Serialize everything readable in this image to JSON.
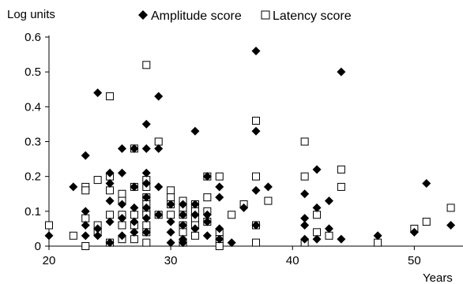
{
  "chart_data": {
    "type": "scatter",
    "title": "",
    "ylabel": "Log units",
    "xlabel": "Years",
    "xlim": [
      20,
      54
    ],
    "ylim": [
      0,
      0.6
    ],
    "x_ticks": [
      20,
      30,
      40,
      50
    ],
    "x_tick_labels": [
      "20",
      "30",
      "40",
      "50"
    ],
    "y_ticks": [
      0,
      0.1,
      0.2,
      0.3,
      0.4,
      0.5,
      0.6
    ],
    "y_tick_labels": [
      "0",
      "0.1",
      "0.2",
      "0.3",
      "0.4",
      "0.5",
      "0.6"
    ],
    "grid": false,
    "legend_position": "top",
    "series": [
      {
        "name": "Amplitude score",
        "marker": "diamond-filled",
        "color": "#000000",
        "points": [
          [
            20,
            0.03
          ],
          [
            22,
            0.17
          ],
          [
            23,
            0.26
          ],
          [
            23,
            0.1
          ],
          [
            23,
            0.06
          ],
          [
            23,
            0.03
          ],
          [
            24,
            0.44
          ],
          [
            24,
            0.05
          ],
          [
            24,
            0.03
          ],
          [
            25,
            0.21
          ],
          [
            25,
            0.18
          ],
          [
            25,
            0.13
          ],
          [
            25,
            0.07
          ],
          [
            25,
            0.01
          ],
          [
            26,
            0.28
          ],
          [
            26,
            0.21
          ],
          [
            26,
            0.12
          ],
          [
            26,
            0.08
          ],
          [
            26,
            0.03
          ],
          [
            27,
            0.28
          ],
          [
            27,
            0.17
          ],
          [
            27,
            0.11
          ],
          [
            27,
            0.07
          ],
          [
            27,
            0.04
          ],
          [
            28,
            0.35
          ],
          [
            28,
            0.28
          ],
          [
            28,
            0.21
          ],
          [
            28,
            0.18
          ],
          [
            28,
            0.14
          ],
          [
            28,
            0.11
          ],
          [
            28,
            0.08
          ],
          [
            28,
            0.04
          ],
          [
            29,
            0.43
          ],
          [
            29,
            0.28
          ],
          [
            29,
            0.17
          ],
          [
            29,
            0.09
          ],
          [
            30,
            0.12
          ],
          [
            30,
            0.07
          ],
          [
            30,
            0.04
          ],
          [
            30,
            0.01
          ],
          [
            31,
            0.12
          ],
          [
            31,
            0.09
          ],
          [
            31,
            0.06
          ],
          [
            31,
            0.02
          ],
          [
            31,
            0.01
          ],
          [
            32,
            0.33
          ],
          [
            32,
            0.12
          ],
          [
            32,
            0.09
          ],
          [
            32,
            0.05
          ],
          [
            33,
            0.2
          ],
          [
            33,
            0.09
          ],
          [
            33,
            0.07
          ],
          [
            33,
            0.03
          ],
          [
            34,
            0.17
          ],
          [
            34,
            0.14
          ],
          [
            34,
            0.05
          ],
          [
            34,
            0.02
          ],
          [
            35,
            0.01
          ],
          [
            36,
            0.11
          ],
          [
            37,
            0.56
          ],
          [
            37,
            0.33
          ],
          [
            37,
            0.16
          ],
          [
            37,
            0.06
          ],
          [
            38,
            0.17
          ],
          [
            41,
            0.15
          ],
          [
            41,
            0.08
          ],
          [
            41,
            0.06
          ],
          [
            41,
            0.02
          ],
          [
            42,
            0.22
          ],
          [
            42,
            0.11
          ],
          [
            42,
            0.02
          ],
          [
            43,
            0.13
          ],
          [
            43,
            0.05
          ],
          [
            44,
            0.5
          ],
          [
            44,
            0.02
          ],
          [
            47,
            0.03
          ],
          [
            50,
            0.04
          ],
          [
            51,
            0.18
          ],
          [
            53,
            0.06
          ]
        ]
      },
      {
        "name": "Latency score",
        "marker": "square-open",
        "color": "#000000",
        "points": [
          [
            20,
            0.06
          ],
          [
            22,
            0.03
          ],
          [
            23,
            0.17
          ],
          [
            23,
            0.16
          ],
          [
            23,
            0.08
          ],
          [
            23,
            0.0
          ],
          [
            24,
            0.19
          ],
          [
            24,
            0.06
          ],
          [
            24,
            0.04
          ],
          [
            25,
            0.43
          ],
          [
            25,
            0.2
          ],
          [
            25,
            0.16
          ],
          [
            25,
            0.09
          ],
          [
            25,
            0.01
          ],
          [
            26,
            0.15
          ],
          [
            26,
            0.13
          ],
          [
            26,
            0.09
          ],
          [
            26,
            0.06
          ],
          [
            26,
            0.02
          ],
          [
            27,
            0.28
          ],
          [
            27,
            0.17
          ],
          [
            27,
            0.09
          ],
          [
            27,
            0.06
          ],
          [
            27,
            0.02
          ],
          [
            28,
            0.52
          ],
          [
            28,
            0.19
          ],
          [
            28,
            0.17
          ],
          [
            28,
            0.14
          ],
          [
            28,
            0.12
          ],
          [
            28,
            0.1
          ],
          [
            28,
            0.09
          ],
          [
            28,
            0.06
          ],
          [
            28,
            0.04
          ],
          [
            28,
            0.01
          ],
          [
            29,
            0.3
          ],
          [
            29,
            0.09
          ],
          [
            30,
            0.16
          ],
          [
            30,
            0.14
          ],
          [
            30,
            0.12
          ],
          [
            30,
            0.09
          ],
          [
            31,
            0.13
          ],
          [
            31,
            0.11
          ],
          [
            31,
            0.09
          ],
          [
            31,
            0.06
          ],
          [
            31,
            0.04
          ],
          [
            31,
            0.01
          ],
          [
            32,
            0.12
          ],
          [
            32,
            0.1
          ],
          [
            32,
            0.08
          ],
          [
            32,
            0.06
          ],
          [
            32,
            0.03
          ],
          [
            33,
            0.2
          ],
          [
            33,
            0.14
          ],
          [
            33,
            0.1
          ],
          [
            33,
            0.07
          ],
          [
            34,
            0.2
          ],
          [
            34,
            0.04
          ],
          [
            34,
            0.02
          ],
          [
            34,
            0.0
          ],
          [
            35,
            0.09
          ],
          [
            36,
            0.12
          ],
          [
            37,
            0.36
          ],
          [
            37,
            0.2
          ],
          [
            37,
            0.06
          ],
          [
            37,
            0.01
          ],
          [
            38,
            0.13
          ],
          [
            41,
            0.3
          ],
          [
            41,
            0.2
          ],
          [
            41,
            0.01
          ],
          [
            42,
            0.09
          ],
          [
            42,
            0.04
          ],
          [
            43,
            0.03
          ],
          [
            44,
            0.22
          ],
          [
            44,
            0.17
          ],
          [
            47,
            0.01
          ],
          [
            50,
            0.05
          ],
          [
            51,
            0.07
          ],
          [
            53,
            0.11
          ]
        ]
      }
    ]
  }
}
